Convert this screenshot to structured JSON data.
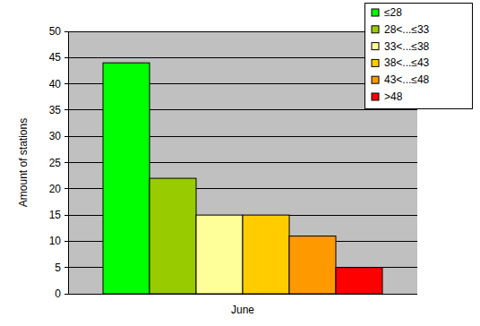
{
  "chart_data": {
    "type": "bar",
    "y_label": "Amount of stations",
    "categories": [
      "June"
    ],
    "series": [
      {
        "name": "≤28",
        "color": "#00ff00",
        "values": [
          44
        ]
      },
      {
        "name": "28<...≤33",
        "color": "#99cc00",
        "values": [
          22
        ]
      },
      {
        "name": "33<...≤38",
        "color": "#ffff99",
        "values": [
          15
        ]
      },
      {
        "name": "38<...≤43",
        "color": "#ffcc00",
        "values": [
          15
        ]
      },
      {
        "name": "43<...≤48",
        "color": "#ff9900",
        "values": [
          11
        ]
      },
      {
        "name": ">48",
        "color": "#ff0000",
        "values": [
          5
        ]
      }
    ],
    "ylim": [
      0,
      50
    ],
    "yticks": [
      0,
      5,
      10,
      15,
      20,
      25,
      30,
      35,
      40,
      45,
      50
    ],
    "grid": true,
    "legend": "top-right"
  }
}
